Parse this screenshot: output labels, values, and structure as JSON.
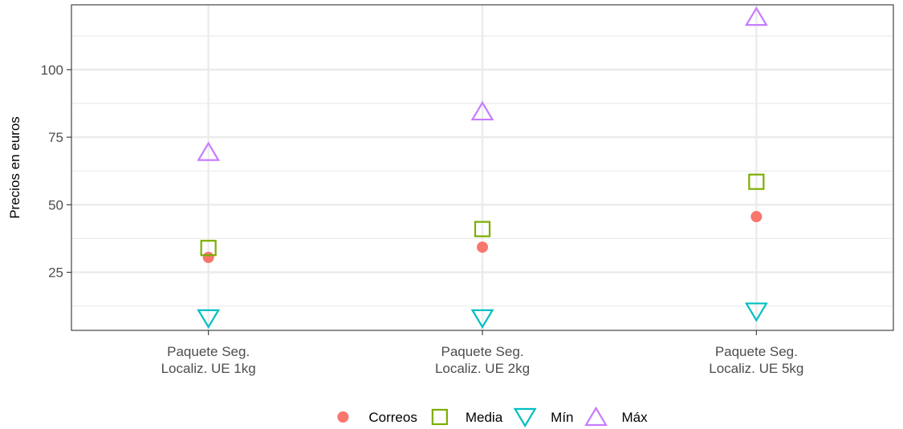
{
  "chart_data": {
    "type": "scatter",
    "title": "",
    "xlabel": "",
    "ylabel": "Precios en euros",
    "categories": [
      [
        "Paquete Seg.",
        "Localiz. UE 1kg"
      ],
      [
        "Paquete Seg.",
        "Localiz. UE 2kg"
      ],
      [
        "Paquete Seg.",
        "Localiz. UE 5kg"
      ]
    ],
    "ylim": [
      3.5,
      124
    ],
    "yticks": [
      25,
      50,
      75,
      100
    ],
    "ytick_labels": [
      "25",
      "50",
      "75",
      "100"
    ],
    "grid": true,
    "legend_position": "bottom",
    "series": [
      {
        "name": "Correos",
        "shape": "circle",
        "color": "#F8766D",
        "values": [
          30.5,
          34.3,
          45.6
        ]
      },
      {
        "name": "Media",
        "shape": "square",
        "color": "#7CAE00",
        "values": [
          34.0,
          41.0,
          58.5
        ]
      },
      {
        "name": "Mín",
        "shape": "triangle-down",
        "color": "#00BFC4",
        "values": [
          8.0,
          8.0,
          10.5
        ]
      },
      {
        "name": "Máx",
        "shape": "triangle-up",
        "color": "#C77CFF",
        "values": [
          69.5,
          84.5,
          119.5
        ]
      }
    ]
  }
}
